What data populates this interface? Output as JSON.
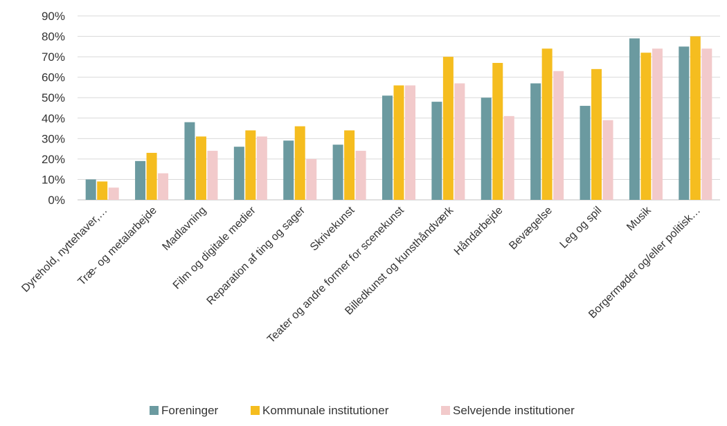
{
  "chart_data": {
    "type": "bar",
    "title": "",
    "xlabel": "",
    "ylabel": "",
    "ylim": [
      0,
      0.9
    ],
    "yticks": [
      "0%",
      "10%",
      "20%",
      "30%",
      "40%",
      "50%",
      "60%",
      "70%",
      "80%",
      "90%"
    ],
    "grid": true,
    "legend_position": "bottom",
    "categories": [
      "Dyrehold, nyttehaver,…",
      "Træ- og metalarbejde",
      "Madlavning",
      "Film og digitale medier",
      "Reparation af ting og sager",
      "Skrivekunst",
      "Teater og andre former for scenekunst",
      "Billedkunst og kunsthåndværk",
      "Håndarbejde",
      "Bevægelse",
      "Leg og spil",
      "Musik",
      "Borgermøder og/eller politisk…"
    ],
    "series": [
      {
        "name": "Foreninger",
        "color": "#6b9aa0",
        "values": [
          0.1,
          0.19,
          0.38,
          0.26,
          0.29,
          0.27,
          0.51,
          0.48,
          0.5,
          0.57,
          0.46,
          0.79,
          0.75
        ]
      },
      {
        "name": "Kommunale institutioner",
        "color": "#f5bd1f",
        "values": [
          0.09,
          0.23,
          0.31,
          0.34,
          0.36,
          0.34,
          0.56,
          0.7,
          0.67,
          0.74,
          0.64,
          0.72,
          0.8
        ]
      },
      {
        "name": "Selvejende institutioner",
        "color": "#f2cacb",
        "values": [
          0.06,
          0.13,
          0.24,
          0.31,
          0.2,
          0.24,
          0.56,
          0.57,
          0.41,
          0.63,
          0.39,
          0.74,
          0.74
        ]
      }
    ]
  }
}
